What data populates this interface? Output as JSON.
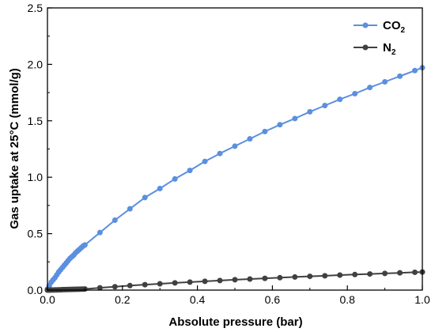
{
  "chart_data": {
    "type": "line",
    "xlabel": "Absolute pressure (bar)",
    "ylabel": "Gas uptake at 25°C (mmol/g)",
    "xlim": [
      0.0,
      1.0
    ],
    "ylim": [
      0.0,
      2.5
    ],
    "x_ticks": [
      "0.0",
      "0.2",
      "0.4",
      "0.6",
      "0.8",
      "1.0"
    ],
    "y_ticks": [
      "0.0",
      "0.5",
      "1.0",
      "1.5",
      "2.0",
      "2.5"
    ],
    "grid": false,
    "legend_position": "top-right",
    "series": [
      {
        "name": "CO2",
        "legend_main": "CO",
        "legend_sub": "2",
        "color": "#5B8FE0",
        "x": [
          0.0,
          0.005,
          0.01,
          0.015,
          0.02,
          0.025,
          0.03,
          0.035,
          0.04,
          0.045,
          0.05,
          0.055,
          0.06,
          0.065,
          0.07,
          0.075,
          0.08,
          0.085,
          0.09,
          0.095,
          0.1,
          0.14,
          0.18,
          0.22,
          0.26,
          0.3,
          0.34,
          0.38,
          0.42,
          0.46,
          0.5,
          0.54,
          0.58,
          0.62,
          0.66,
          0.7,
          0.74,
          0.78,
          0.82,
          0.86,
          0.9,
          0.94,
          0.98,
          1.0
        ],
        "y": [
          0.01,
          0.04,
          0.07,
          0.09,
          0.11,
          0.135,
          0.16,
          0.18,
          0.2,
          0.22,
          0.24,
          0.26,
          0.28,
          0.295,
          0.31,
          0.33,
          0.345,
          0.36,
          0.375,
          0.39,
          0.4,
          0.51,
          0.62,
          0.72,
          0.82,
          0.9,
          0.985,
          1.06,
          1.14,
          1.21,
          1.275,
          1.34,
          1.405,
          1.465,
          1.52,
          1.58,
          1.635,
          1.69,
          1.74,
          1.795,
          1.845,
          1.895,
          1.945,
          1.97
        ]
      },
      {
        "name": "N2",
        "legend_main": "N",
        "legend_sub": "2",
        "color": "#404040",
        "x": [
          0.0,
          0.005,
          0.01,
          0.015,
          0.02,
          0.025,
          0.03,
          0.035,
          0.04,
          0.045,
          0.05,
          0.055,
          0.06,
          0.065,
          0.07,
          0.075,
          0.08,
          0.085,
          0.09,
          0.095,
          0.1,
          0.14,
          0.18,
          0.22,
          0.26,
          0.3,
          0.34,
          0.38,
          0.42,
          0.46,
          0.5,
          0.54,
          0.58,
          0.62,
          0.66,
          0.7,
          0.74,
          0.78,
          0.82,
          0.86,
          0.9,
          0.94,
          0.98,
          1.0
        ],
        "y": [
          0.0,
          0.0,
          0.001,
          0.001,
          0.002,
          0.002,
          0.003,
          0.003,
          0.004,
          0.004,
          0.005,
          0.005,
          0.006,
          0.006,
          0.007,
          0.007,
          0.008,
          0.008,
          0.009,
          0.009,
          0.01,
          0.02,
          0.03,
          0.04,
          0.048,
          0.056,
          0.064,
          0.071,
          0.078,
          0.085,
          0.092,
          0.098,
          0.104,
          0.11,
          0.116,
          0.122,
          0.127,
          0.133,
          0.138,
          0.143,
          0.148,
          0.153,
          0.158,
          0.16
        ]
      }
    ]
  }
}
